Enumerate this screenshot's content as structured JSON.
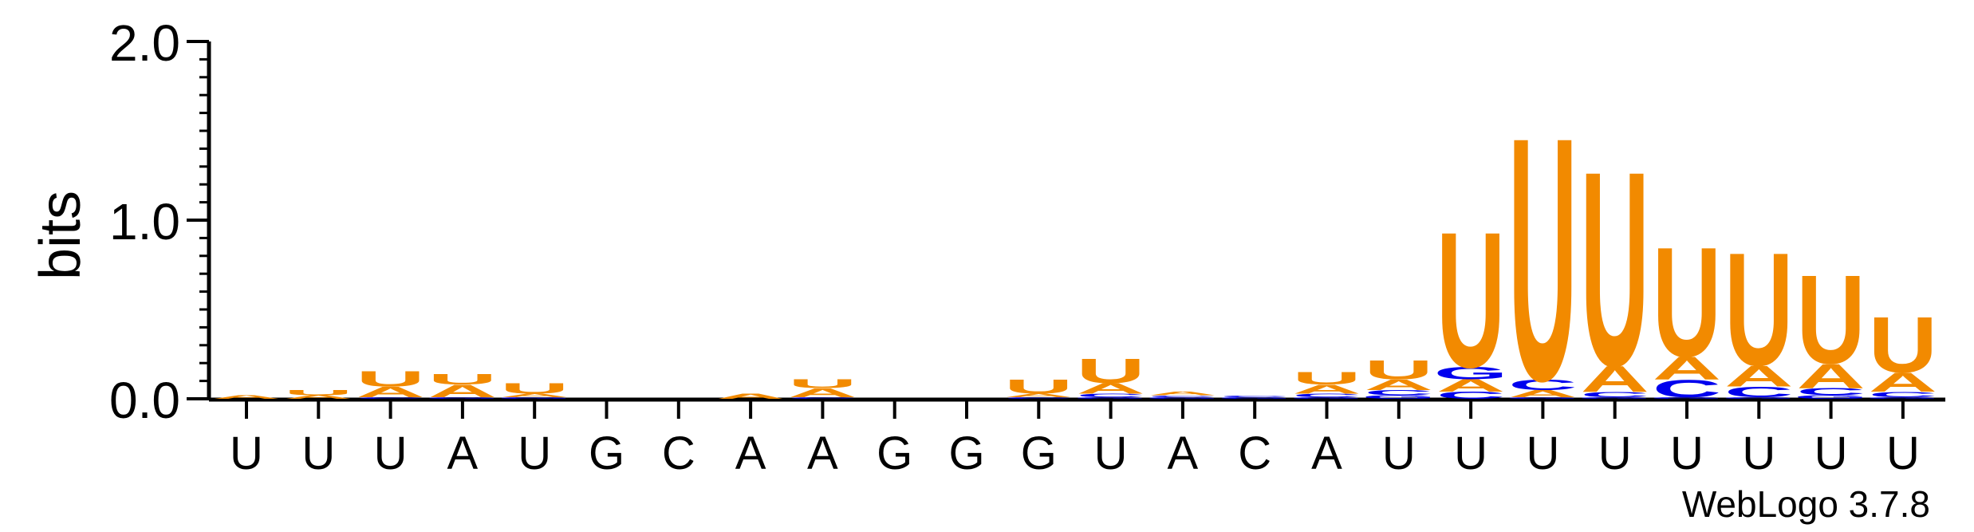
{
  "chart_data": {
    "type": "sequence-logo",
    "title": "",
    "xlabel": "",
    "ylabel": "bits",
    "ylim": [
      0,
      2.0
    ],
    "yticks": [
      "0.0",
      "1.0",
      "2.0"
    ],
    "y_minor_step": 0.1,
    "credit": "WebLogo 3.7.8",
    "colors": {
      "U": "#f28a00",
      "A": "#f28a00",
      "C": "#0000ee",
      "G": "#0000ee"
    },
    "positions": [
      {
        "label": "U",
        "letters": [
          {
            "base": "A",
            "bits": 0.02
          }
        ]
      },
      {
        "label": "U",
        "letters": [
          {
            "base": "A",
            "bits": 0.02
          },
          {
            "base": "U",
            "bits": 0.03
          }
        ]
      },
      {
        "label": "U",
        "letters": [
          {
            "base": "C",
            "bits": 0.01
          },
          {
            "base": "A",
            "bits": 0.06
          },
          {
            "base": "U",
            "bits": 0.09
          }
        ]
      },
      {
        "label": "A",
        "letters": [
          {
            "base": "G",
            "bits": 0.01
          },
          {
            "base": "A",
            "bits": 0.07
          },
          {
            "base": "U",
            "bits": 0.06
          }
        ]
      },
      {
        "label": "U",
        "letters": [
          {
            "base": "G",
            "bits": 0.01
          },
          {
            "base": "A",
            "bits": 0.02
          },
          {
            "base": "U",
            "bits": 0.06
          }
        ]
      },
      {
        "label": "G",
        "letters": []
      },
      {
        "label": "C",
        "letters": []
      },
      {
        "label": "A",
        "letters": [
          {
            "base": "A",
            "bits": 0.03
          }
        ]
      },
      {
        "label": "A",
        "letters": [
          {
            "base": "C",
            "bits": 0.01
          },
          {
            "base": "A",
            "bits": 0.05
          },
          {
            "base": "U",
            "bits": 0.05
          }
        ]
      },
      {
        "label": "G",
        "letters": []
      },
      {
        "label": "G",
        "letters": []
      },
      {
        "label": "G",
        "letters": [
          {
            "base": "C",
            "bits": 0.01
          },
          {
            "base": "A",
            "bits": 0.02
          },
          {
            "base": "U",
            "bits": 0.08
          }
        ]
      },
      {
        "label": "U",
        "letters": [
          {
            "base": "G",
            "bits": 0.01
          },
          {
            "base": "C",
            "bits": 0.02
          },
          {
            "base": "A",
            "bits": 0.06
          },
          {
            "base": "U",
            "bits": 0.14
          }
        ]
      },
      {
        "label": "A",
        "letters": [
          {
            "base": "G",
            "bits": 0.01
          },
          {
            "base": "C",
            "bits": 0.01
          },
          {
            "base": "A",
            "bits": 0.02
          }
        ]
      },
      {
        "label": "C",
        "letters": [
          {
            "base": "G",
            "bits": 0.01
          },
          {
            "base": "C",
            "bits": 0.01
          }
        ]
      },
      {
        "label": "A",
        "letters": [
          {
            "base": "G",
            "bits": 0.01
          },
          {
            "base": "C",
            "bits": 0.02
          },
          {
            "base": "A",
            "bits": 0.05
          },
          {
            "base": "U",
            "bits": 0.07
          }
        ]
      },
      {
        "label": "U",
        "letters": [
          {
            "base": "G",
            "bits": 0.02
          },
          {
            "base": "C",
            "bits": 0.03
          },
          {
            "base": "A",
            "bits": 0.06
          },
          {
            "base": "U",
            "bits": 0.11
          }
        ]
      },
      {
        "label": "U",
        "letters": [
          {
            "base": "C",
            "bits": 0.04
          },
          {
            "base": "A",
            "bits": 0.07
          },
          {
            "base": "G",
            "bits": 0.07
          },
          {
            "base": "U",
            "bits": 0.78
          }
        ]
      },
      {
        "label": "U",
        "letters": [
          {
            "base": "G",
            "bits": 0.01
          },
          {
            "base": "A",
            "bits": 0.04
          },
          {
            "base": "C",
            "bits": 0.06
          },
          {
            "base": "U",
            "bits": 1.4
          }
        ]
      },
      {
        "label": "U",
        "letters": [
          {
            "base": "G",
            "bits": 0.01
          },
          {
            "base": "C",
            "bits": 0.03
          },
          {
            "base": "A",
            "bits": 0.15
          },
          {
            "base": "U",
            "bits": 1.12
          }
        ]
      },
      {
        "label": "U",
        "letters": [
          {
            "base": "G",
            "bits": 0.01
          },
          {
            "base": "C",
            "bits": 0.1
          },
          {
            "base": "A",
            "bits": 0.13
          },
          {
            "base": "U",
            "bits": 0.63
          }
        ]
      },
      {
        "label": "U",
        "letters": [
          {
            "base": "G",
            "bits": 0.01
          },
          {
            "base": "C",
            "bits": 0.06
          },
          {
            "base": "A",
            "bits": 0.12
          },
          {
            "base": "U",
            "bits": 0.65
          }
        ]
      },
      {
        "label": "U",
        "letters": [
          {
            "base": "G",
            "bits": 0.02
          },
          {
            "base": "C",
            "bits": 0.04
          },
          {
            "base": "A",
            "bits": 0.14
          },
          {
            "base": "U",
            "bits": 0.51
          }
        ]
      },
      {
        "label": "U",
        "letters": [
          {
            "base": "G",
            "bits": 0.01
          },
          {
            "base": "C",
            "bits": 0.03
          },
          {
            "base": "A",
            "bits": 0.11
          },
          {
            "base": "U",
            "bits": 0.32
          }
        ]
      }
    ]
  }
}
